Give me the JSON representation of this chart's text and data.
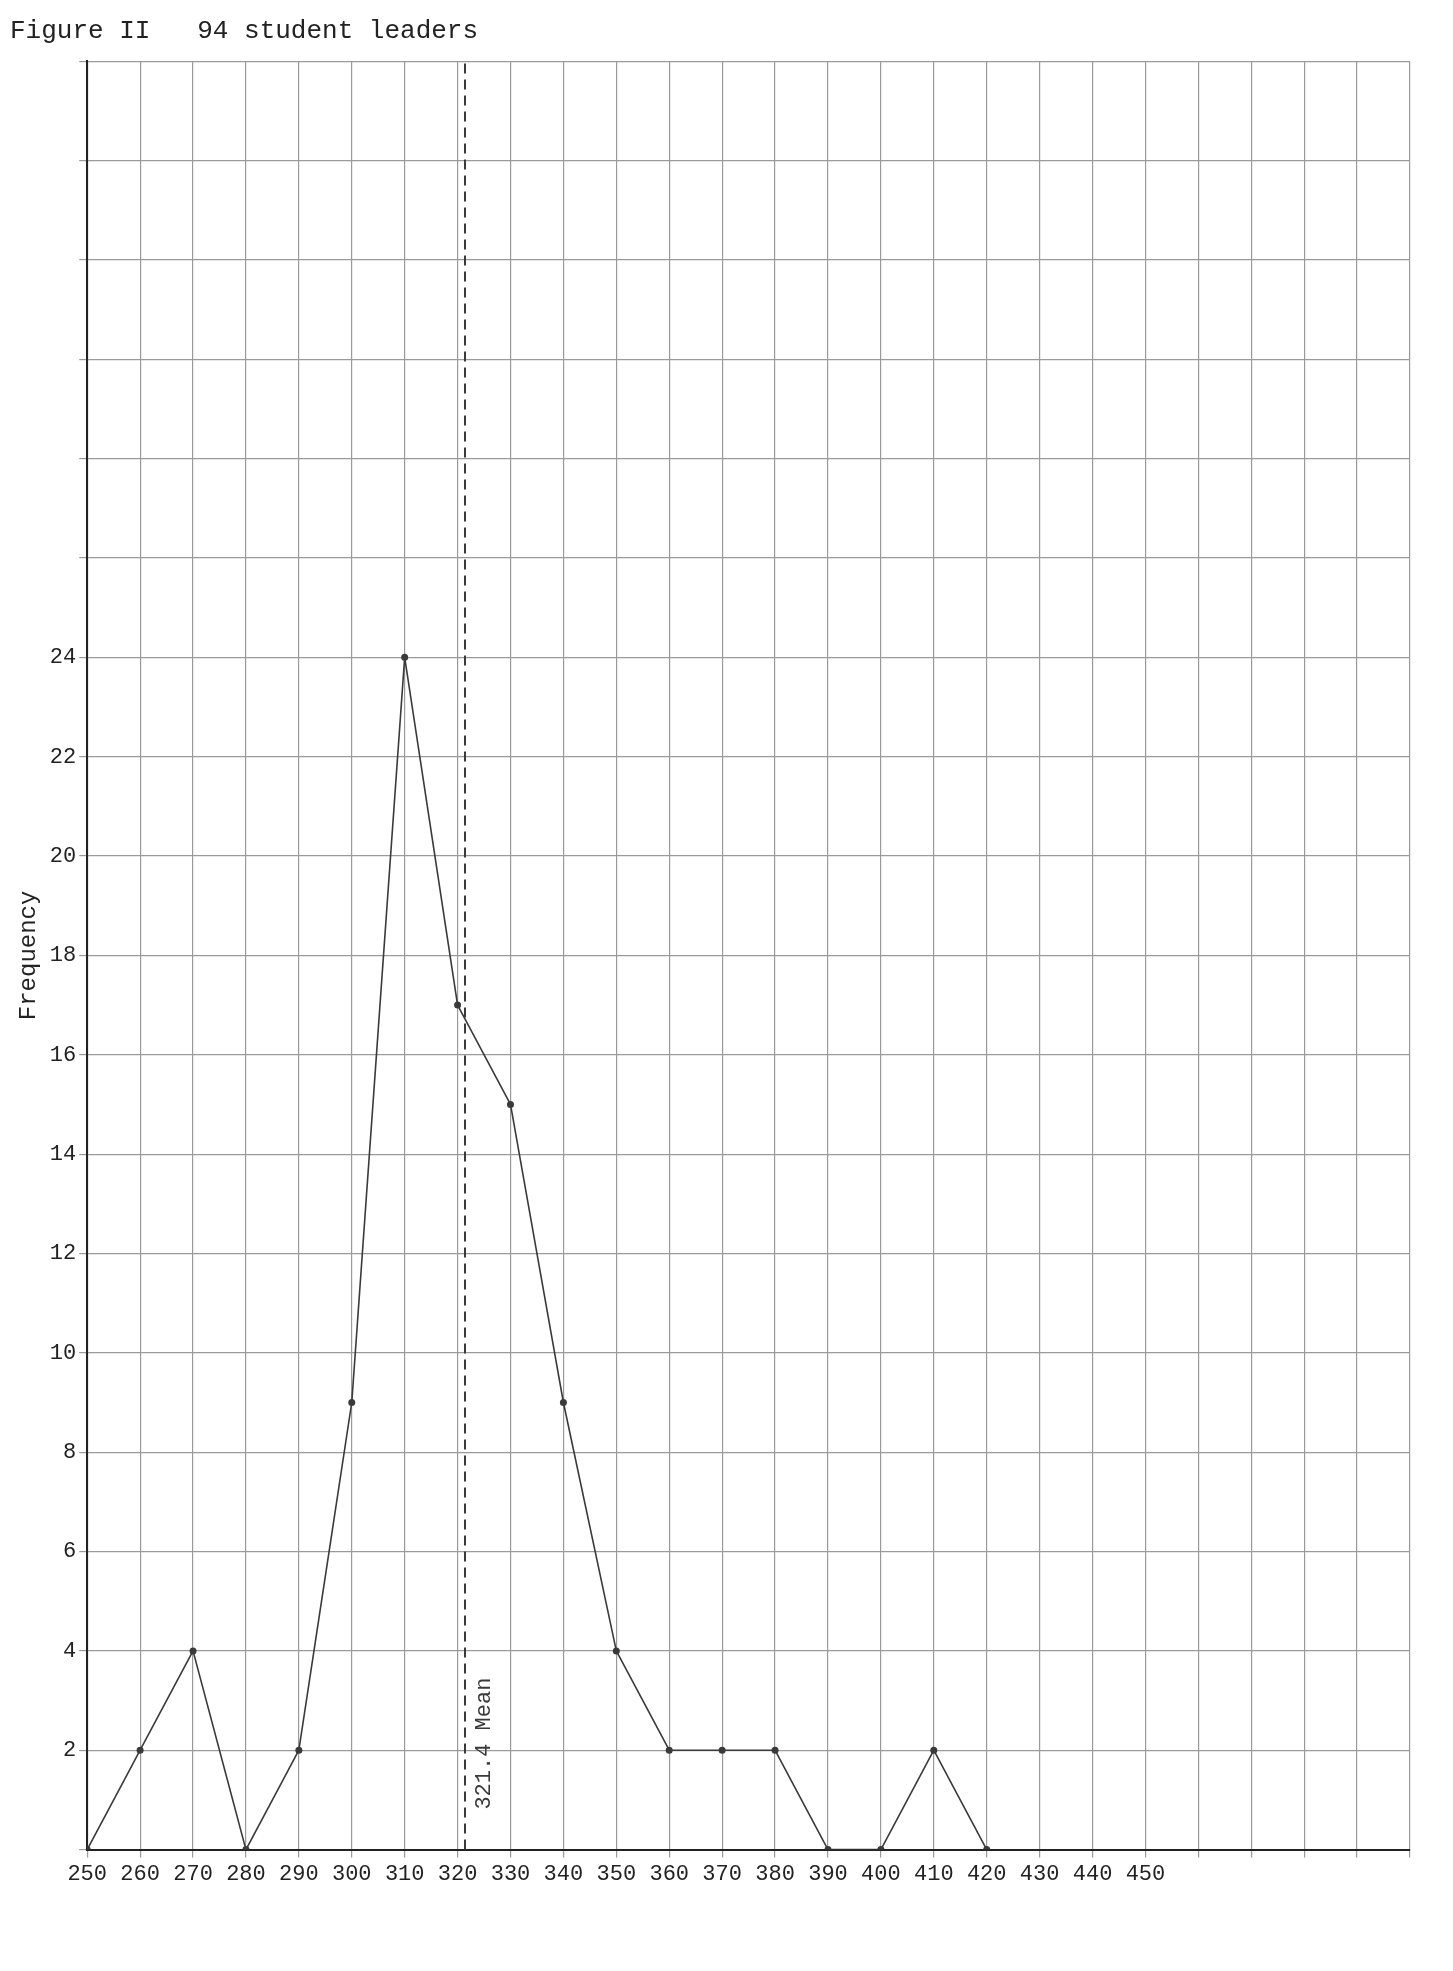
{
  "chart_data": {
    "type": "line",
    "title": "Figure II   94 student leaders",
    "ylabel": "Frequency",
    "x": [
      250,
      260,
      270,
      280,
      290,
      300,
      310,
      320,
      330,
      340,
      350,
      360,
      370,
      380,
      390,
      400,
      410,
      420
    ],
    "series": [
      {
        "color": "#3a3a3a",
        "values": [
          0,
          2,
          4,
          0,
          2,
          9,
          24,
          17,
          15,
          9,
          4,
          2,
          2,
          2,
          0,
          0,
          2,
          0
        ]
      }
    ],
    "xlim": [
      250,
      500
    ],
    "xticks": [
      250,
      260,
      270,
      280,
      290,
      300,
      310,
      320,
      330,
      340,
      350,
      360,
      370,
      380,
      390,
      400,
      410,
      420,
      430,
      440,
      450,
      {
        "value": 460,
        "label": null
      },
      {
        "value": 470,
        "label": null
      },
      {
        "value": 480,
        "label": null
      },
      {
        "value": 490,
        "label": null
      },
      {
        "value": 500,
        "label": null
      }
    ],
    "ylim": [
      0,
      36
    ],
    "yticks": [
      {
        "value": 0,
        "label": null
      },
      2,
      4,
      6,
      8,
      10,
      12,
      14,
      16,
      18,
      20,
      22,
      24,
      {
        "value": 26,
        "label": null
      },
      {
        "value": 28,
        "label": null
      },
      {
        "value": 30,
        "label": null
      },
      {
        "value": 32,
        "label": null
      },
      {
        "value": 34,
        "label": null
      },
      {
        "value": 36,
        "label": null
      }
    ],
    "ref_lines": [
      {
        "axis": "x",
        "value": 321.4,
        "label": "321.4 Mean",
        "color": "#3a3a3a",
        "line_style": "dashed"
      }
    ],
    "grid": true,
    "legend": false,
    "marker": "circle",
    "line_style": "solid"
  }
}
